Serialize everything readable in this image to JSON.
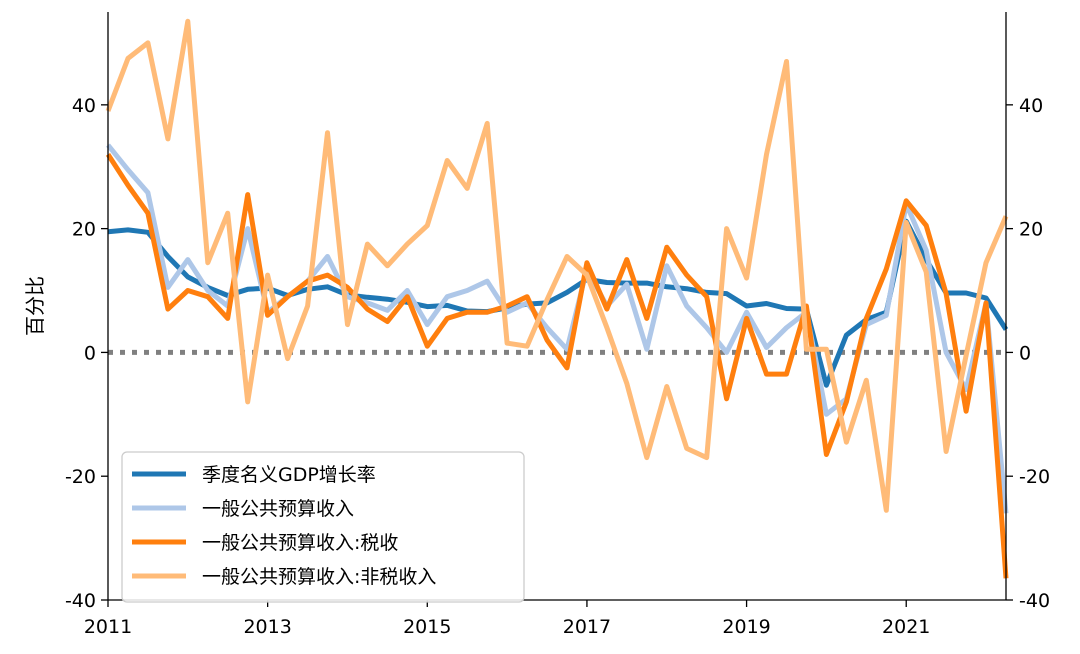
{
  "chart_data": {
    "type": "line",
    "title": "",
    "xlabel": "",
    "ylabel": "百分比",
    "xlim": [
      2011.0,
      2022.25
    ],
    "ylim": [
      -40,
      55
    ],
    "x_ticks": [
      2011,
      2013,
      2015,
      2017,
      2019,
      2021
    ],
    "y_ticks": [
      -40,
      -20,
      0,
      20,
      40
    ],
    "grid": false,
    "secondary_y_axis": true,
    "zero_line": {
      "value": 0,
      "style": "dotted",
      "color": "#808080"
    },
    "legend": {
      "placement": "lower-left"
    },
    "x": [
      2011.0,
      2011.25,
      2011.5,
      2011.75,
      2012.0,
      2012.25,
      2012.5,
      2012.75,
      2013.0,
      2013.25,
      2013.5,
      2013.75,
      2014.0,
      2014.25,
      2014.5,
      2014.75,
      2015.0,
      2015.25,
      2015.5,
      2015.75,
      2016.0,
      2016.25,
      2016.5,
      2016.75,
      2017.0,
      2017.25,
      2017.5,
      2017.75,
      2018.0,
      2018.25,
      2018.5,
      2018.75,
      2019.0,
      2019.25,
      2019.5,
      2019.75,
      2020.0,
      2020.25,
      2020.5,
      2020.75,
      2021.0,
      2021.25,
      2021.5,
      2021.75,
      2022.0,
      2022.25
    ],
    "series": [
      {
        "name": "季度名义GDP增长率",
        "color": "#1f77b4",
        "values": [
          19.5,
          19.8,
          19.4,
          15.5,
          12.2,
          10.5,
          9.2,
          10.2,
          10.4,
          9.2,
          10.2,
          10.6,
          9.3,
          8.9,
          8.6,
          8.1,
          7.4,
          7.6,
          6.7,
          6.6,
          7.2,
          7.8,
          8.0,
          9.7,
          11.8,
          11.3,
          11.2,
          11.2,
          10.6,
          10.3,
          9.7,
          9.5,
          7.5,
          7.9,
          7.1,
          7.0,
          -5.3,
          2.8,
          5.3,
          6.5,
          21.2,
          15.0,
          9.6,
          9.6,
          8.8,
          3.7
        ]
      },
      {
        "name": "一般公共预算收入",
        "color": "#aec7e8",
        "values": [
          33.5,
          29.5,
          25.8,
          10.5,
          15.0,
          10.0,
          7.5,
          20.0,
          6.5,
          9.0,
          11.5,
          15.5,
          9.0,
          8.0,
          6.8,
          10.0,
          4.5,
          9.0,
          10.0,
          11.5,
          6.5,
          8.0,
          4.0,
          0.5,
          13.5,
          7.5,
          11.0,
          0.5,
          14.0,
          7.5,
          4.0,
          0.0,
          6.5,
          0.8,
          4.0,
          6.5,
          -10.0,
          -7.5,
          4.5,
          6.0,
          24.0,
          16.5,
          0.0,
          -6.0,
          8.0,
          -26.0
        ]
      },
      {
        "name": "一般公共预算收入:税收",
        "color": "#ff7f0e",
        "values": [
          32.0,
          27.0,
          22.5,
          7.0,
          10.0,
          9.0,
          5.5,
          25.5,
          6.0,
          9.0,
          11.5,
          12.5,
          10.5,
          7.0,
          5.0,
          9.0,
          1.0,
          5.5,
          6.5,
          6.5,
          7.5,
          9.0,
          2.0,
          -2.5,
          14.5,
          7.0,
          15.0,
          5.5,
          17.0,
          12.5,
          9.0,
          -7.5,
          5.5,
          -3.5,
          -3.5,
          7.5,
          -16.5,
          -8.0,
          5.5,
          13.5,
          24.5,
          20.5,
          9.5,
          -9.5,
          8.0,
          -36.5
        ]
      },
      {
        "name": "一般公共预算收入:非税收入",
        "color": "#ffbb78",
        "values": [
          39.0,
          47.5,
          50.0,
          34.5,
          53.5,
          14.5,
          22.5,
          -8.0,
          12.5,
          -1.0,
          7.5,
          35.5,
          4.5,
          17.5,
          14.0,
          17.5,
          20.5,
          31.0,
          26.5,
          37.0,
          1.5,
          1.0,
          8.5,
          15.5,
          12.5,
          4.0,
          -5.0,
          -17.0,
          -5.5,
          -15.5,
          -17.0,
          20.0,
          12.0,
          32.0,
          47.0,
          0.5,
          0.5,
          -14.5,
          -4.5,
          -25.5,
          21.0,
          13.0,
          -16.0,
          -0.5,
          14.5,
          22.0
        ]
      }
    ]
  }
}
